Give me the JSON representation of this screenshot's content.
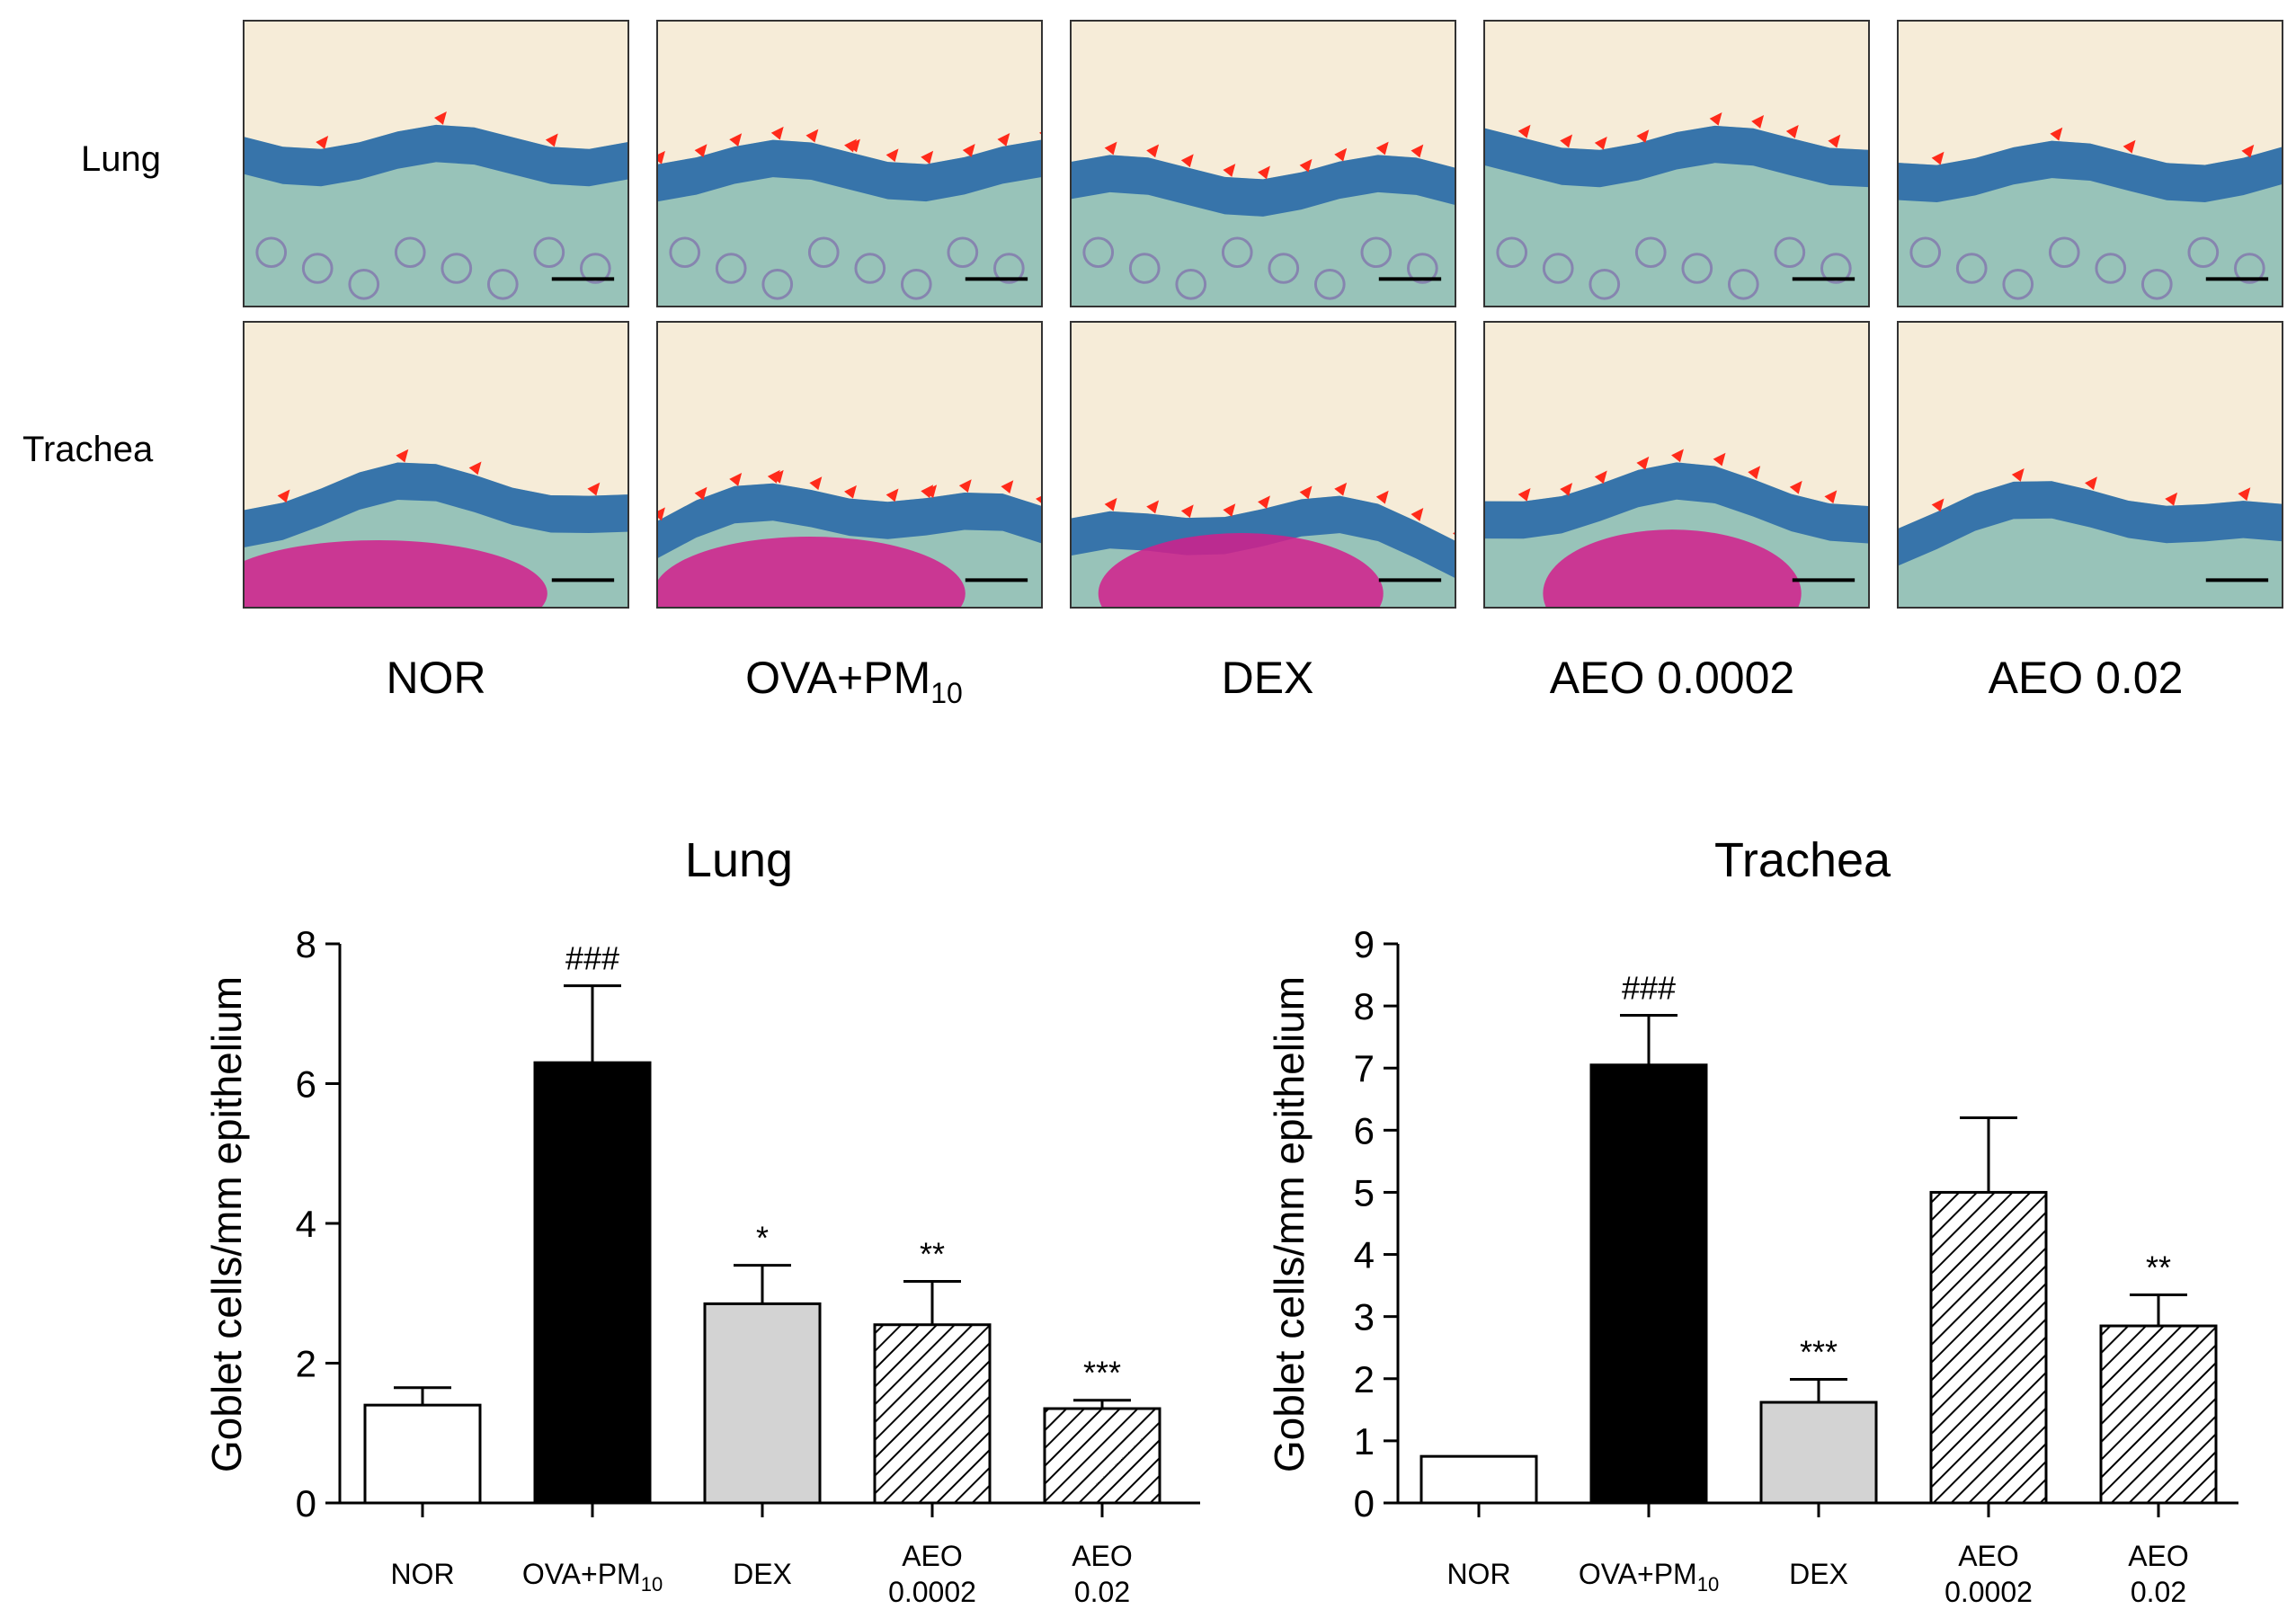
{
  "figure": {
    "row_labels": [
      "Lung",
      "Trachea"
    ],
    "group_labels": [
      {
        "main": "NOR",
        "sub": ""
      },
      {
        "main": "OVA+PM",
        "sub": "10"
      },
      {
        "main": "DEX",
        "sub": ""
      },
      {
        "main": "AEO 0.0002",
        "sub": ""
      },
      {
        "main": "AEO 0.02",
        "sub": ""
      }
    ],
    "colors": {
      "tissue_background": "#f6ecd8",
      "epithelium": "#2c6ca8",
      "stroma": "#4aa3a0",
      "cartilage": "#d21f8c",
      "arrow": "#ff2a1a"
    }
  },
  "chart_data": [
    {
      "type": "bar",
      "title": "Lung",
      "ylabel": "Goblet cells/mm epithelium",
      "xlabel": "",
      "ylim": [
        0,
        8
      ],
      "yticks": [
        "0",
        "2",
        "4",
        "6",
        "8"
      ],
      "ytick_values": [
        0,
        2,
        4,
        6,
        8
      ],
      "categories": [
        {
          "lines": [
            "NOR"
          ],
          "sub": ""
        },
        {
          "lines": [
            "OVA+PM"
          ],
          "sub": "10"
        },
        {
          "lines": [
            "DEX"
          ],
          "sub": ""
        },
        {
          "lines": [
            "AEO",
            "0.0002"
          ],
          "sub": ""
        },
        {
          "lines": [
            "AEO",
            "0.02"
          ],
          "sub": ""
        }
      ],
      "values": [
        1.4,
        6.3,
        2.85,
        2.55,
        1.35
      ],
      "errors": [
        0.25,
        1.1,
        0.55,
        0.62,
        0.12
      ],
      "annotations": [
        "",
        "###",
        "*",
        "**",
        "***"
      ],
      "fills": [
        "white",
        "black",
        "gray",
        "hatch",
        "hatch"
      ]
    },
    {
      "type": "bar",
      "title": "Trachea",
      "ylabel": "Goblet cells/mm epithelium",
      "xlabel": "",
      "ylim": [
        0,
        9
      ],
      "yticks": [
        "0",
        "1",
        "2",
        "3",
        "4",
        "5",
        "6",
        "7",
        "8",
        "9"
      ],
      "ytick_values": [
        0,
        1,
        2,
        3,
        4,
        5,
        6,
        7,
        8,
        9
      ],
      "categories": [
        {
          "lines": [
            "NOR"
          ],
          "sub": ""
        },
        {
          "lines": [
            "OVA+PM"
          ],
          "sub": "10"
        },
        {
          "lines": [
            "DEX"
          ],
          "sub": ""
        },
        {
          "lines": [
            "AEO",
            "0.0002"
          ],
          "sub": ""
        },
        {
          "lines": [
            "AEO",
            "0.02"
          ],
          "sub": ""
        }
      ],
      "values": [
        0.75,
        7.05,
        1.62,
        5.0,
        2.85
      ],
      "errors": [
        0.0,
        0.8,
        0.37,
        1.2,
        0.5
      ],
      "annotations": [
        "",
        "###",
        "***",
        "",
        "**"
      ],
      "fills": [
        "white",
        "black",
        "gray",
        "hatch",
        "hatch"
      ]
    }
  ]
}
